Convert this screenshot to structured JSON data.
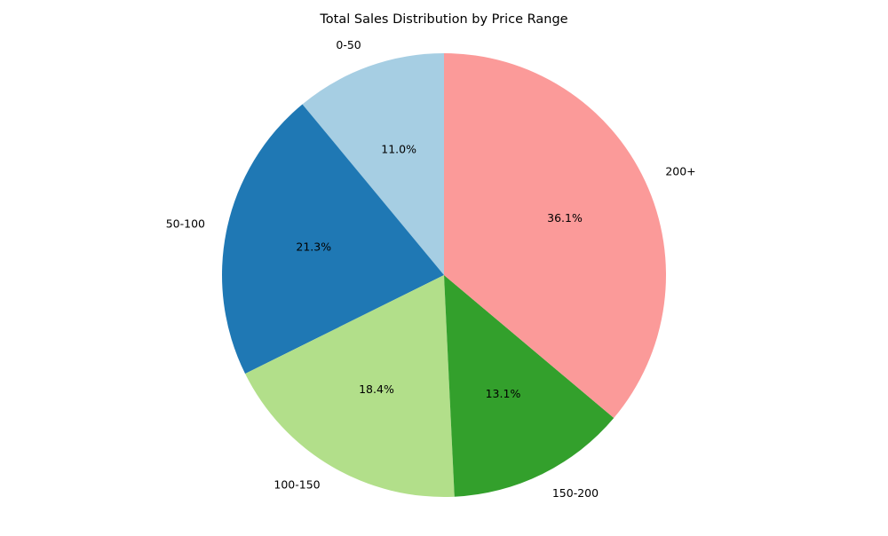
{
  "chart_data": {
    "type": "pie",
    "title": "Total Sales Distribution by Price Range",
    "start_angle_deg": 90,
    "direction": "counterclockwise",
    "slices": [
      {
        "label": "0-50",
        "value": 11.0,
        "pct_label": "11.0%",
        "color": "#a6cee3"
      },
      {
        "label": "50-100",
        "value": 21.3,
        "pct_label": "21.3%",
        "color": "#1f78b4"
      },
      {
        "label": "100-150",
        "value": 18.4,
        "pct_label": "18.4%",
        "color": "#b2df8a"
      },
      {
        "label": "150-200",
        "value": 13.1,
        "pct_label": "13.1%",
        "color": "#33a02c"
      },
      {
        "label": "200+",
        "value": 36.1,
        "pct_label": "36.1%",
        "color": "#fb9a99"
      }
    ]
  }
}
